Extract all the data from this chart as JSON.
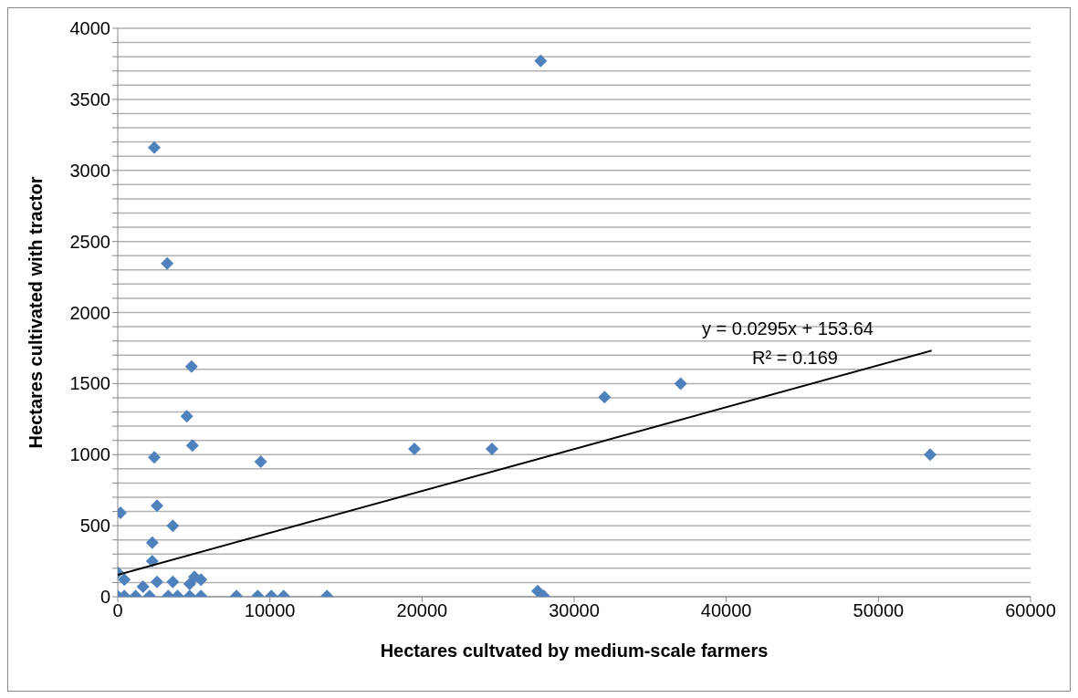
{
  "chart_data": {
    "type": "scatter",
    "xlabel": "Hectares cultvated by medium-scale farmers",
    "ylabel": "Hectares cultivated with tractor",
    "annotations": [
      "y = 0.0295x + 153.64",
      "R² = 0.169"
    ],
    "xlim": [
      0,
      60000
    ],
    "xticks": [
      0,
      10000,
      20000,
      30000,
      40000,
      50000,
      60000
    ],
    "ylim": [
      0,
      4000
    ],
    "yticks": [
      0,
      {
        "value": 100,
        "label": null
      },
      {
        "value": 200,
        "label": null
      },
      {
        "value": 300,
        "label": null
      },
      {
        "value": 400,
        "label": null
      },
      500,
      {
        "value": 600,
        "label": null
      },
      {
        "value": 700,
        "label": null
      },
      {
        "value": 800,
        "label": null
      },
      {
        "value": 900,
        "label": null
      },
      1000,
      {
        "value": 1100,
        "label": null
      },
      {
        "value": 1200,
        "label": null
      },
      {
        "value": 1300,
        "label": null
      },
      {
        "value": 1400,
        "label": null
      },
      1500,
      {
        "value": 1600,
        "label": null
      },
      {
        "value": 1700,
        "label": null
      },
      {
        "value": 1800,
        "label": null
      },
      {
        "value": 1900,
        "label": null
      },
      2000,
      {
        "value": 2100,
        "label": null
      },
      {
        "value": 2200,
        "label": null
      },
      {
        "value": 2300,
        "label": null
      },
      {
        "value": 2400,
        "label": null
      },
      2500,
      {
        "value": 2600,
        "label": null
      },
      {
        "value": 2700,
        "label": null
      },
      {
        "value": 2800,
        "label": null
      },
      {
        "value": 2900,
        "label": null
      },
      3000,
      {
        "value": 3100,
        "label": null
      },
      {
        "value": 3200,
        "label": null
      },
      {
        "value": 3300,
        "label": null
      },
      {
        "value": 3400,
        "label": null
      },
      3500,
      {
        "value": 3600,
        "label": null
      },
      {
        "value": 3700,
        "label": null
      },
      {
        "value": 3800,
        "label": null
      },
      {
        "value": 3900,
        "label": null
      },
      4000
    ],
    "grid": "y",
    "legend": false,
    "marker": "diamond",
    "series": [
      {
        "color": "#4f81bd",
        "x": [
          27800,
          2400,
          3250,
          4850,
          4540,
          4910,
          2400,
          9400,
          19500,
          24600,
          32000,
          37000,
          53400,
          180,
          2580,
          3620,
          2270,
          2270,
          0,
          2580,
          3620,
          5040,
          5470,
          430,
          1660,
          4730,
          0,
          430,
          1170,
          2090,
          3320,
          3930,
          4730,
          5470,
          7800,
          9200,
          10100,
          10900,
          13750,
          27600,
          28000
        ],
        "values": [
          3770,
          3160,
          2345,
          1620,
          1270,
          1065,
          980,
          950,
          1040,
          1040,
          1405,
          1500,
          1000,
          590,
          640,
          500,
          380,
          250,
          170,
          105,
          105,
          140,
          120,
          120,
          70,
          90,
          5,
          5,
          5,
          5,
          5,
          5,
          5,
          5,
          5,
          5,
          5,
          5,
          5,
          40,
          5
        ]
      },
      {
        "type": "line",
        "color": "#000000",
        "marker": "none",
        "x": [
          0,
          53500
        ],
        "values": [
          154,
          1732
        ]
      }
    ]
  }
}
